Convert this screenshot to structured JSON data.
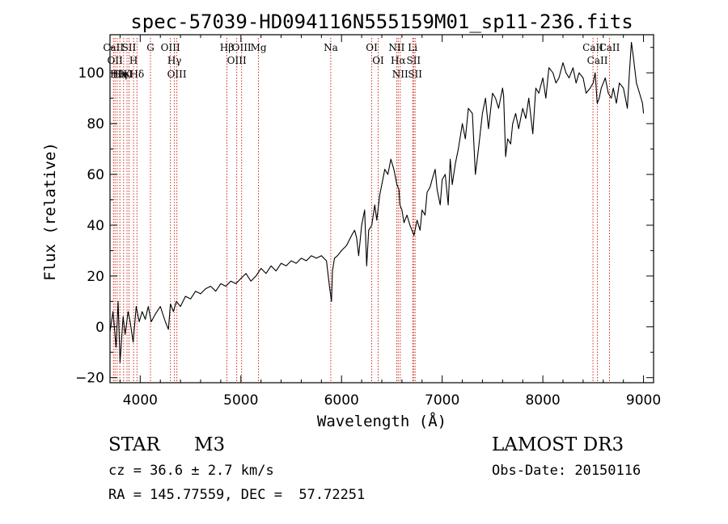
{
  "chart_data": {
    "type": "line",
    "title": "spec-57039-HD094116N555159M01_sp11-236.fits",
    "xlabel": "Wavelength (Å)",
    "ylabel": "Flux (relative)",
    "xlim": [
      3700,
      9100
    ],
    "ylim": [
      -22,
      115
    ],
    "xticks": [
      4000,
      5000,
      6000,
      7000,
      8000,
      9000
    ],
    "yticks": [
      -20,
      0,
      20,
      40,
      60,
      80,
      100
    ],
    "xtick_labels": [
      "4000",
      "5000",
      "6000",
      "7000",
      "8000",
      "9000"
    ],
    "ytick_labels": [
      "−20",
      "0",
      "20",
      "40",
      "60",
      "80",
      "100"
    ],
    "series": [
      {
        "name": "flux",
        "x": [
          3700,
          3730,
          3760,
          3780,
          3800,
          3830,
          3850,
          3880,
          3900,
          3930,
          3960,
          3990,
          4020,
          4050,
          4080,
          4110,
          4150,
          4200,
          4250,
          4280,
          4300,
          4330,
          4360,
          4400,
          4450,
          4500,
          4550,
          4600,
          4650,
          4700,
          4750,
          4800,
          4850,
          4900,
          4950,
          5000,
          5050,
          5100,
          5150,
          5200,
          5250,
          5300,
          5350,
          5400,
          5450,
          5500,
          5550,
          5600,
          5650,
          5700,
          5750,
          5800,
          5850,
          5880,
          5900,
          5910,
          5930,
          5960,
          6000,
          6050,
          6100,
          6130,
          6150,
          6170,
          6200,
          6230,
          6250,
          6270,
          6300,
          6330,
          6350,
          6380,
          6400,
          6430,
          6460,
          6490,
          6520,
          6550,
          6570,
          6580,
          6600,
          6620,
          6650,
          6680,
          6700,
          6720,
          6750,
          6780,
          6800,
          6830,
          6850,
          6880,
          6900,
          6930,
          6950,
          6980,
          7000,
          7030,
          7060,
          7080,
          7100,
          7130,
          7160,
          7200,
          7230,
          7260,
          7300,
          7330,
          7360,
          7400,
          7430,
          7460,
          7500,
          7530,
          7560,
          7600,
          7610,
          7630,
          7650,
          7680,
          7700,
          7730,
          7760,
          7800,
          7830,
          7860,
          7900,
          7930,
          7960,
          8000,
          8030,
          8060,
          8100,
          8130,
          8160,
          8200,
          8230,
          8260,
          8300,
          8330,
          8360,
          8400,
          8430,
          8470,
          8500,
          8520,
          8540,
          8560,
          8580,
          8600,
          8620,
          8650,
          8680,
          8700,
          8730,
          8760,
          8800,
          8820,
          8840,
          8860,
          8880,
          8900,
          8930,
          8960,
          8990,
          9000
        ],
        "values": [
          -2,
          6,
          -8,
          10,
          -14,
          4,
          -3,
          6,
          2,
          -6,
          8,
          2,
          6,
          3,
          8,
          2,
          5,
          8,
          2,
          -1,
          9,
          6,
          10,
          8,
          12,
          11,
          14,
          13,
          15,
          16,
          14,
          17,
          16,
          18,
          17,
          19,
          21,
          18,
          20,
          23,
          21,
          24,
          22,
          25,
          24,
          26,
          25,
          27,
          26,
          28,
          27,
          28,
          26,
          16,
          10,
          22,
          27,
          28,
          30,
          32,
          36,
          38,
          35,
          28,
          40,
          46,
          24,
          38,
          40,
          48,
          42,
          52,
          56,
          62,
          60,
          66,
          62,
          56,
          54,
          48,
          46,
          41,
          44,
          40,
          38,
          36,
          42,
          38,
          46,
          44,
          53,
          55,
          58,
          62,
          54,
          48,
          58,
          60,
          48,
          66,
          56,
          64,
          70,
          80,
          74,
          86,
          84,
          60,
          70,
          84,
          90,
          78,
          92,
          90,
          86,
          94,
          91,
          67,
          74,
          72,
          80,
          84,
          78,
          86,
          82,
          90,
          76,
          94,
          92,
          98,
          90,
          102,
          100,
          96,
          98,
          104,
          100,
          98,
          102,
          96,
          100,
          98,
          92,
          94,
          96,
          100,
          88,
          90,
          94,
          96,
          98,
          92,
          90,
          94,
          88,
          96,
          94,
          90,
          86,
          100,
          112,
          106,
          96,
          92,
          88,
          84
        ]
      }
    ],
    "lines": [
      {
        "wave": 3734,
        "label": "CaII"
      },
      {
        "wave": 3750,
        "label": "OII"
      },
      {
        "wave": 3771,
        "label": "Hθ"
      },
      {
        "wave": 3798,
        "label": "Hη"
      },
      {
        "wave": 3835,
        "label": "HeI"
      },
      {
        "wave": 3869,
        "label": "K"
      },
      {
        "wave": 3889,
        "label": "SII"
      },
      {
        "wave": 3934,
        "label": "H"
      },
      {
        "wave": 3968,
        "label": "Hδ"
      },
      {
        "wave": 4102,
        "label": "G"
      },
      {
        "wave": 4300,
        "label": "OIII"
      },
      {
        "wave": 4340,
        "label": "Hγ"
      },
      {
        "wave": 4364,
        "label": "OIII"
      },
      {
        "wave": 4861,
        "label": "Hβ"
      },
      {
        "wave": 4959,
        "label": "OIII"
      },
      {
        "wave": 5007,
        "label": "OIII"
      },
      {
        "wave": 5175,
        "label": "Mg"
      },
      {
        "wave": 5893,
        "label": "Na"
      },
      {
        "wave": 6300,
        "label": "OI"
      },
      {
        "wave": 6364,
        "label": "OI"
      },
      {
        "wave": 6548,
        "label": "NII"
      },
      {
        "wave": 6563,
        "label": "Hα"
      },
      {
        "wave": 6583,
        "label": "NII"
      },
      {
        "wave": 6707,
        "label": "Li"
      },
      {
        "wave": 6716,
        "label": "SII"
      },
      {
        "wave": 6731,
        "label": "SII"
      },
      {
        "wave": 8498,
        "label": "CaII"
      },
      {
        "wave": 8542,
        "label": "CaII"
      },
      {
        "wave": 8662,
        "label": "CaII"
      }
    ]
  },
  "info": {
    "class": "STAR",
    "subclass": "M3",
    "survey": "LAMOST DR3",
    "cz": "cz = 36.6 ± 2.7 km/s",
    "obs_date": "Obs-Date: 20150116",
    "radec": "RA = 145.77559, DEC =  57.72251"
  },
  "colors": {
    "spectrum": "#000000",
    "line_markers": "#cc2a1a",
    "axes": "#000000",
    "background": "#ffffff"
  }
}
